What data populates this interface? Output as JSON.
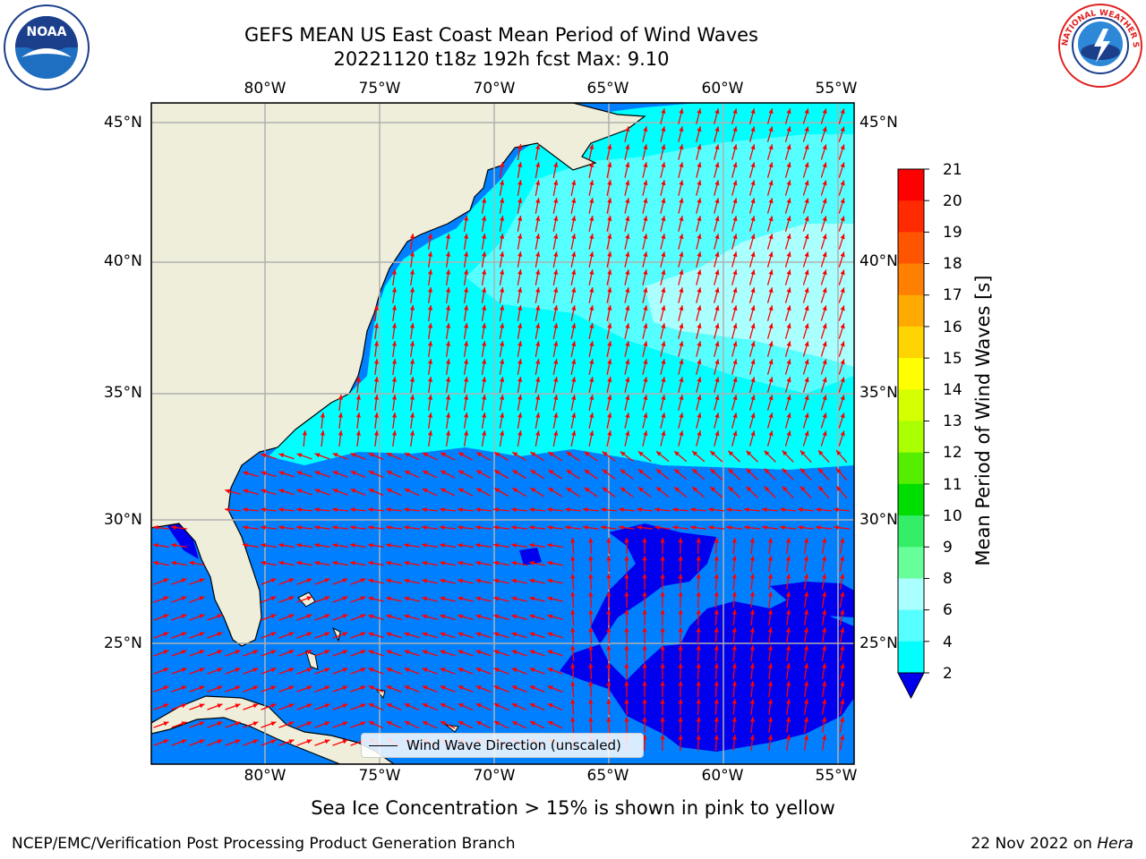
{
  "title_line1": "GEFS MEAN US East Coast Mean Period of Wind Waves",
  "title_line2": "20221120 t18z 192h fcst   Max: 9.10",
  "logos": {
    "left": "NOAA",
    "right": "NATIONAL WEATHER SERVICE"
  },
  "map_extent": {
    "lon": [
      -85,
      -54.5
    ],
    "lat": [
      20.5,
      46
    ]
  },
  "lon_ticks": [
    "80°W",
    "75°W",
    "70°W",
    "65°W",
    "60°W",
    "55°W"
  ],
  "lat_ticks": [
    "45°N",
    "40°N",
    "35°N",
    "30°N",
    "25°N"
  ],
  "colorbar": {
    "label": "Mean Period of Wind Waves [s]",
    "ticks": [
      "21",
      "20",
      "19",
      "18",
      "17",
      "16",
      "15",
      "14",
      "13",
      "12",
      "11",
      "10",
      "9",
      "8",
      "6",
      "4",
      "2"
    ],
    "colors": [
      "#ff0000",
      "#ff2a00",
      "#ff5500",
      "#ff7f00",
      "#ffaa00",
      "#ffd400",
      "#ffff00",
      "#d4ff00",
      "#aaff00",
      "#55ee00",
      "#00dd00",
      "#33ee66",
      "#66ff99",
      "#aaffff",
      "#55ffff",
      "#00ffff",
      "#0080ff",
      "#0000ee"
    ]
  },
  "fill_colors": {
    "land": "#efeedb",
    "period_lt2": "#0000ee",
    "period_2_4": "#0080ff",
    "period_4_6": "#00ffff",
    "period_6_8": "#55ffff",
    "period_8_9": "#aaffff",
    "arrows": "#ff0000",
    "grid": "#b0b0b0"
  },
  "legend_label": "Wind Wave Direction (unscaled)",
  "sea_ice_note": "Sea Ice Concentration > 15% is shown in pink to yellow",
  "footer_left": "NCEP/EMC/Verification Post Processing Product Generation Branch",
  "footer_date": "22 Nov 2022 on ",
  "footer_machine": "Hera"
}
